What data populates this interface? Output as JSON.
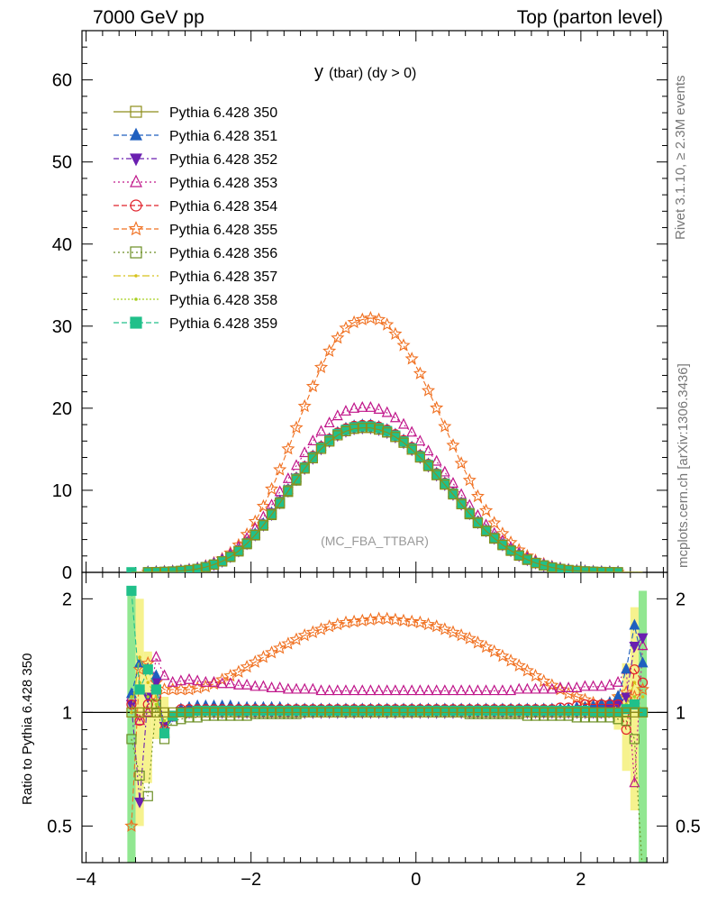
{
  "header": {
    "left": "7000 GeV pp",
    "right": "Top (parton level)"
  },
  "side_labels": {
    "rivet": "Rivet 3.1.10, ≥ 2.3M events",
    "mcplots": "mcplots.cern.ch [arXiv:1306.3436]"
  },
  "chart_data": {
    "type": "line",
    "title_main": "y",
    "title_sub": "(tbar) (dy > 0)",
    "watermark": "(MC_FBA_TTBAR)",
    "x": [
      -3.45,
      -3.35,
      -3.25,
      -3.15,
      -3.05,
      -2.95,
      -2.85,
      -2.75,
      -2.65,
      -2.55,
      -2.45,
      -2.35,
      -2.25,
      -2.15,
      -2.05,
      -1.95,
      -1.85,
      -1.75,
      -1.65,
      -1.55,
      -1.45,
      -1.35,
      -1.25,
      -1.15,
      -1.05,
      -0.95,
      -0.85,
      -0.75,
      -0.65,
      -0.55,
      -0.45,
      -0.35,
      -0.25,
      -0.15,
      -0.05,
      0.05,
      0.15,
      0.25,
      0.35,
      0.45,
      0.55,
      0.65,
      0.75,
      0.85,
      0.95,
      1.05,
      1.15,
      1.25,
      1.35,
      1.45,
      1.55,
      1.65,
      1.75,
      1.85,
      1.95,
      2.05,
      2.15,
      2.25,
      2.35,
      2.45,
      2.55,
      2.65,
      2.75
    ],
    "series": [
      {
        "name": "Pythia 6.428 350",
        "color": "#8e8e1a",
        "marker": "square-open",
        "dash": "solid",
        "values": [
          0.01,
          0.01,
          0.02,
          0.04,
          0.07,
          0.11,
          0.18,
          0.28,
          0.42,
          0.65,
          0.95,
          1.35,
          1.9,
          2.6,
          3.5,
          4.55,
          5.75,
          7.05,
          8.45,
          9.9,
          11.3,
          12.65,
          13.9,
          15.05,
          15.95,
          16.7,
          17.2,
          17.5,
          17.6,
          17.6,
          17.4,
          17.05,
          16.5,
          15.8,
          14.95,
          14.0,
          12.95,
          11.85,
          10.7,
          9.5,
          8.3,
          7.15,
          6.05,
          5.05,
          4.15,
          3.35,
          2.65,
          2.05,
          1.55,
          1.15,
          0.85,
          0.6,
          0.42,
          0.28,
          0.18,
          0.12,
          0.08,
          0.05,
          0.03,
          0.02,
          0.01,
          0.01,
          0.01
        ],
        "ratio": [
          1.0,
          1.0,
          1.0,
          1.0,
          1.0,
          1.0,
          1.0,
          1.0,
          1.0,
          1.0,
          1.0,
          1.0,
          1.0,
          1.0,
          1.0,
          1.0,
          1.0,
          1.0,
          1.0,
          1.0,
          1.0,
          1.0,
          1.0,
          1.0,
          1.0,
          1.0,
          1.0,
          1.0,
          1.0,
          1.0,
          1.0,
          1.0,
          1.0,
          1.0,
          1.0,
          1.0,
          1.0,
          1.0,
          1.0,
          1.0,
          1.0,
          1.0,
          1.0,
          1.0,
          1.0,
          1.0,
          1.0,
          1.0,
          1.0,
          1.0,
          1.0,
          1.0,
          1.0,
          1.0,
          1.0,
          1.0,
          1.0,
          1.0,
          1.0,
          1.0,
          1.0,
          1.0,
          1.0
        ]
      },
      {
        "name": "Pythia 6.428 351",
        "color": "#1f5fbf",
        "marker": "triangle-up-filled",
        "dash": "6,3",
        "ratio": [
          1.12,
          1.35,
          1.3,
          1.25,
          0.88,
          0.97,
          1.02,
          1.03,
          1.04,
          1.04,
          1.04,
          1.04,
          1.04,
          1.03,
          1.03,
          1.03,
          1.03,
          1.03,
          1.03,
          1.02,
          1.02,
          1.02,
          1.02,
          1.02,
          1.02,
          1.02,
          1.02,
          1.02,
          1.02,
          1.02,
          1.02,
          1.02,
          1.02,
          1.02,
          1.02,
          1.02,
          1.02,
          1.02,
          1.02,
          1.02,
          1.02,
          1.02,
          1.02,
          1.02,
          1.02,
          1.02,
          1.02,
          1.02,
          1.02,
          1.02,
          1.02,
          1.02,
          1.02,
          1.02,
          1.03,
          1.03,
          1.04,
          1.05,
          1.06,
          1.1,
          1.3,
          1.7,
          1.35
        ]
      },
      {
        "name": "Pythia 6.428 352",
        "color": "#6a1fb0",
        "marker": "triangle-down-filled",
        "dash": "6,3,2,3",
        "ratio": [
          1.05,
          0.58,
          1.1,
          1.2,
          0.92,
          0.98,
          1.01,
          1.0,
          1.01,
          1.01,
          1.0,
          1.0,
          1.01,
          1.0,
          1.0,
          1.0,
          1.0,
          1.0,
          1.0,
          1.0,
          1.0,
          1.0,
          1.0,
          1.0,
          1.0,
          1.0,
          1.0,
          1.0,
          1.0,
          1.0,
          1.0,
          1.0,
          1.0,
          1.0,
          1.0,
          1.0,
          1.0,
          1.0,
          1.0,
          1.0,
          1.0,
          1.0,
          1.0,
          1.0,
          1.0,
          1.0,
          1.0,
          1.0,
          1.0,
          1.0,
          1.0,
          1.0,
          1.0,
          1.0,
          1.0,
          1.0,
          1.0,
          1.0,
          1.02,
          1.05,
          1.1,
          1.5,
          1.58
        ]
      },
      {
        "name": "Pythia 6.428 353",
        "color": "#c0168a",
        "marker": "triangle-up-open",
        "dash": "2,3",
        "ratio": [
          1.1,
          0.95,
          1.0,
          1.4,
          1.25,
          1.2,
          1.21,
          1.22,
          1.21,
          1.2,
          1.2,
          1.19,
          1.19,
          1.18,
          1.18,
          1.17,
          1.17,
          1.16,
          1.16,
          1.15,
          1.15,
          1.15,
          1.15,
          1.14,
          1.14,
          1.14,
          1.14,
          1.14,
          1.14,
          1.14,
          1.14,
          1.14,
          1.14,
          1.14,
          1.14,
          1.14,
          1.14,
          1.14,
          1.14,
          1.14,
          1.14,
          1.14,
          1.14,
          1.14,
          1.14,
          1.14,
          1.14,
          1.15,
          1.15,
          1.15,
          1.15,
          1.15,
          1.16,
          1.16,
          1.16,
          1.17,
          1.17,
          1.17,
          1.18,
          1.2,
          1.3,
          0.65,
          1.5
        ]
      },
      {
        "name": "Pythia 6.428 354",
        "color": "#e0202a",
        "marker": "circle-open",
        "dash": "6,3",
        "ratio": [
          1.05,
          0.95,
          1.05,
          1.1,
          0.9,
          0.98,
          1.02,
          1.02,
          1.02,
          1.02,
          1.02,
          1.02,
          1.02,
          1.02,
          1.02,
          1.02,
          1.02,
          1.02,
          1.02,
          1.02,
          1.02,
          1.02,
          1.02,
          1.02,
          1.02,
          1.02,
          1.02,
          1.02,
          1.02,
          1.02,
          1.02,
          1.02,
          1.02,
          1.02,
          1.02,
          1.02,
          1.02,
          1.02,
          1.02,
          1.02,
          1.02,
          1.02,
          1.02,
          1.02,
          1.02,
          1.02,
          1.02,
          1.02,
          1.02,
          1.02,
          1.02,
          1.02,
          1.03,
          1.03,
          1.04,
          1.05,
          1.05,
          1.05,
          1.05,
          1.05,
          0.9,
          1.3,
          1.2
        ]
      },
      {
        "name": "Pythia 6.428 355",
        "color": "#f07020",
        "marker": "star-open",
        "dash": "6,3",
        "ratio": [
          0.5,
          1.3,
          1.35,
          1.2,
          1.15,
          1.15,
          1.15,
          1.15,
          1.16,
          1.17,
          1.19,
          1.22,
          1.25,
          1.28,
          1.32,
          1.36,
          1.4,
          1.44,
          1.48,
          1.52,
          1.56,
          1.6,
          1.63,
          1.66,
          1.69,
          1.71,
          1.73,
          1.74,
          1.75,
          1.76,
          1.77,
          1.77,
          1.76,
          1.75,
          1.74,
          1.73,
          1.71,
          1.69,
          1.66,
          1.63,
          1.6,
          1.57,
          1.53,
          1.49,
          1.45,
          1.41,
          1.37,
          1.33,
          1.29,
          1.25,
          1.21,
          1.18,
          1.15,
          1.12,
          1.1,
          1.08,
          1.06,
          1.05,
          1.06,
          1.1,
          1.13,
          1.1,
          1.15
        ]
      },
      {
        "name": "Pythia 6.428 356",
        "color": "#6b8e23",
        "marker": "square-open",
        "dash": "2,3",
        "ratio": [
          0.85,
          0.68,
          0.6,
          1.05,
          0.85,
          0.95,
          0.96,
          0.97,
          0.97,
          0.98,
          0.98,
          0.98,
          0.98,
          0.98,
          0.98,
          0.99,
          0.99,
          0.99,
          0.99,
          0.99,
          0.99,
          1.0,
          1.0,
          1.0,
          1.0,
          1.0,
          1.0,
          1.0,
          1.0,
          1.0,
          1.0,
          1.0,
          1.0,
          1.0,
          1.0,
          1.0,
          1.0,
          1.0,
          1.0,
          1.0,
          1.0,
          0.99,
          0.99,
          0.99,
          0.99,
          0.99,
          0.99,
          0.99,
          0.98,
          0.98,
          0.98,
          0.98,
          0.98,
          0.98,
          0.97,
          0.97,
          0.97,
          0.97,
          0.97,
          0.96,
          0.95,
          0.85,
          0.37
        ]
      },
      {
        "name": "Pythia 6.428 357",
        "color": "#d6c21a",
        "marker": "dot",
        "dash": "8,3,2,3",
        "ratio": [
          1.0,
          1.4,
          1.2,
          1.1,
          0.9,
          0.98,
          1.0,
          1.01,
          1.0,
          1.0,
          1.0,
          1.0,
          1.0,
          1.0,
          1.0,
          1.0,
          1.0,
          1.0,
          1.0,
          1.0,
          1.0,
          1.0,
          1.0,
          1.0,
          1.0,
          1.0,
          1.0,
          1.0,
          1.0,
          1.0,
          1.0,
          1.0,
          1.0,
          1.0,
          1.0,
          1.0,
          1.0,
          1.0,
          1.0,
          1.0,
          1.0,
          1.0,
          1.0,
          1.0,
          1.0,
          1.0,
          1.0,
          1.0,
          1.0,
          1.0,
          1.0,
          1.0,
          1.0,
          1.0,
          1.0,
          1.0,
          1.0,
          1.0,
          1.0,
          1.02,
          1.05,
          1.2,
          1.1
        ]
      },
      {
        "name": "Pythia 6.428 358",
        "color": "#a8d020",
        "marker": "dot",
        "dash": "2,2",
        "ratio": [
          1.1,
          1.2,
          1.1,
          1.05,
          0.95,
          0.99,
          1.0,
          1.0,
          1.0,
          1.0,
          1.0,
          1.0,
          1.0,
          1.0,
          1.0,
          1.0,
          1.0,
          1.0,
          1.0,
          1.0,
          1.0,
          1.0,
          1.0,
          1.0,
          1.0,
          1.0,
          1.0,
          1.0,
          1.0,
          1.0,
          1.0,
          1.0,
          1.0,
          1.0,
          1.0,
          1.0,
          1.0,
          1.0,
          1.0,
          1.0,
          1.0,
          1.0,
          1.0,
          1.0,
          1.0,
          1.0,
          1.0,
          1.0,
          1.0,
          1.0,
          1.0,
          1.0,
          1.0,
          1.0,
          1.0,
          1.0,
          1.0,
          1.0,
          1.0,
          1.0,
          1.05,
          1.1,
          1.0
        ]
      },
      {
        "name": "Pythia 6.428 359",
        "color": "#20c08a",
        "marker": "square-filled",
        "dash": "6,3",
        "ratio": [
          2.1,
          1.15,
          1.3,
          1.15,
          0.88,
          0.98,
          1.0,
          1.0,
          1.01,
          1.01,
          1.01,
          1.01,
          1.01,
          1.01,
          1.01,
          1.01,
          1.01,
          1.01,
          1.01,
          1.01,
          1.01,
          1.01,
          1.01,
          1.01,
          1.01,
          1.01,
          1.01,
          1.01,
          1.01,
          1.01,
          1.01,
          1.01,
          1.01,
          1.01,
          1.01,
          1.01,
          1.01,
          1.01,
          1.01,
          1.01,
          1.01,
          1.01,
          1.01,
          1.01,
          1.01,
          1.01,
          1.01,
          1.01,
          1.01,
          1.01,
          1.01,
          1.01,
          1.01,
          1.01,
          1.01,
          1.01,
          1.0,
          1.0,
          1.0,
          1.0,
          1.02,
          1.05,
          1.0
        ]
      }
    ],
    "xlim": [
      -4.05,
      3.05
    ],
    "ylim_main": [
      0,
      66
    ],
    "ylim_ratio": [
      0.4,
      2.35
    ],
    "yticks_main": [
      "0",
      "10",
      "20",
      "30",
      "40",
      "50",
      "60"
    ],
    "yticks_ratio": [
      "0.5",
      "1",
      "2"
    ],
    "xticks": [
      "−4",
      "−2",
      "0",
      "2"
    ],
    "ratio_ylabel": "Ratio to Pythia 6.428 350",
    "ratio_bands": [
      {
        "x": -3.45,
        "lo": 0.4,
        "hi": 2.1,
        "color": "#7ee37e"
      },
      {
        "x": -3.35,
        "lo": 0.5,
        "hi": 2.0,
        "color": "#f4f07a"
      },
      {
        "x": -3.25,
        "lo": 0.65,
        "hi": 1.45,
        "color": "#f4f07a"
      },
      {
        "x": -3.15,
        "lo": 0.85,
        "hi": 1.2,
        "color": "#f4f07a"
      },
      {
        "x": -3.05,
        "lo": 0.9,
        "hi": 1.1,
        "color": "#f4f07a"
      },
      {
        "x": 2.45,
        "lo": 0.9,
        "hi": 1.12,
        "color": "#f4f07a"
      },
      {
        "x": 2.55,
        "lo": 0.7,
        "hi": 1.35,
        "color": "#f4f07a"
      },
      {
        "x": 2.65,
        "lo": 0.55,
        "hi": 1.9,
        "color": "#f4f07a"
      },
      {
        "x": 2.75,
        "lo": 0.4,
        "hi": 2.1,
        "color": "#7ee37e"
      }
    ]
  }
}
